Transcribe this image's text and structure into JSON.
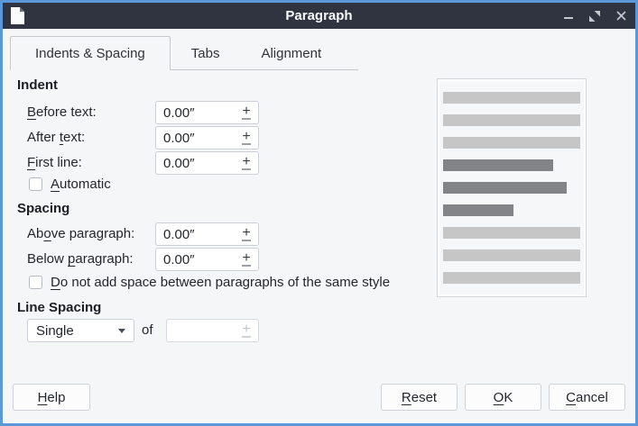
{
  "colors": {
    "accent_border": "#5b97d9",
    "titlebar_bg": "#2f3440",
    "titlebar_text": "#fafbfc",
    "dialog_bg": "#f5f6f7",
    "bar_light": "#c6c6c6",
    "bar_dark": "#828487"
  },
  "window": {
    "title": "Paragraph",
    "icons": {
      "app": "document-icon",
      "minimize": "minimize-icon",
      "restore": "restore-icon",
      "close": "close-icon"
    }
  },
  "tabs": [
    {
      "label": "Indents & Spacing",
      "active": true
    },
    {
      "label": "Tabs",
      "active": false
    },
    {
      "label": "Alignment",
      "active": false
    }
  ],
  "indent": {
    "header": "Indent",
    "rows": [
      {
        "label": {
          "text": "Before text:",
          "u": 0
        },
        "value": "0.00″"
      },
      {
        "label": {
          "text": "After text:",
          "u": 6
        },
        "value": "0.00″"
      },
      {
        "label": {
          "text": "First line:",
          "u": 0
        },
        "value": "0.00″"
      }
    ],
    "automatic": {
      "text": "Automatic",
      "u": 0,
      "checked": false
    }
  },
  "spacing": {
    "header": "Spacing",
    "rows": [
      {
        "label": {
          "text": "Above paragraph:",
          "u": 2
        },
        "value": "0.00″"
      },
      {
        "label": {
          "text": "Below paragraph:",
          "u": 6
        },
        "value": "0.00″"
      }
    ],
    "checkbox": {
      "text": "Do not add space between paragraphs of the same style",
      "u": 0,
      "checked": false
    }
  },
  "line_spacing": {
    "header": "Line Spacing",
    "selected": "Single",
    "of_label": "of",
    "of_value": ""
  },
  "preview": {
    "bars": [
      {
        "tone": "light",
        "width_pct": 100
      },
      {
        "tone": "light",
        "width_pct": 100
      },
      {
        "tone": "light",
        "width_pct": 100
      },
      {
        "tone": "dark",
        "width_pct": 80
      },
      {
        "tone": "dark",
        "width_pct": 90
      },
      {
        "tone": "dark",
        "width_pct": 51
      },
      {
        "tone": "light",
        "width_pct": 100
      },
      {
        "tone": "light",
        "width_pct": 100
      },
      {
        "tone": "light",
        "width_pct": 100
      }
    ]
  },
  "buttons": {
    "help": {
      "text": "Help",
      "u": 0
    },
    "reset": {
      "text": "Reset",
      "u": 0
    },
    "ok": {
      "text": "OK",
      "u": 0
    },
    "cancel": {
      "text": "Cancel",
      "u": 0
    }
  }
}
